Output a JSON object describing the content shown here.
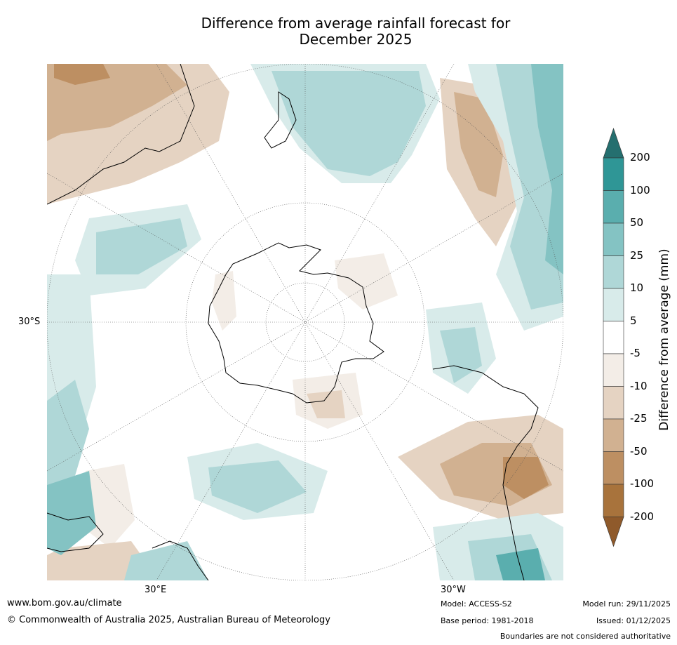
{
  "title": {
    "line1": "Difference from average rainfall forecast for",
    "line2": "December 2025"
  },
  "map": {
    "projection": "south-polar-stereographic",
    "lat_label": "30°S",
    "lon_labels": {
      "east": "30°E",
      "west": "30°W"
    }
  },
  "legend": {
    "title": "Difference from average (mm)",
    "ticks": [
      "200",
      "100",
      "50",
      "25",
      "10",
      "5",
      "-5",
      "-10",
      "-25",
      "-50",
      "-100",
      "-200"
    ],
    "colors": [
      "#256f6f",
      "#2f9696",
      "#5aaeae",
      "#84c3c3",
      "#afd7d7",
      "#d8ebea",
      "#ffffff",
      "#f3ede7",
      "#e5d3c2",
      "#d1b191",
      "#bd8f62",
      "#a8733c",
      "#8f5a2b"
    ]
  },
  "footer": {
    "website": "www.bom.gov.au/climate",
    "copyright": "© Commonwealth of Australia 2025, Australian Bureau of Meteorology",
    "model": "Model: ACCESS-S2",
    "base_period": "Base period: 1981-2018",
    "model_run": "Model run: 29/11/2025",
    "issued": "Issued: 01/12/2025",
    "disclaimer": "Boundaries are not considered authoritative"
  }
}
